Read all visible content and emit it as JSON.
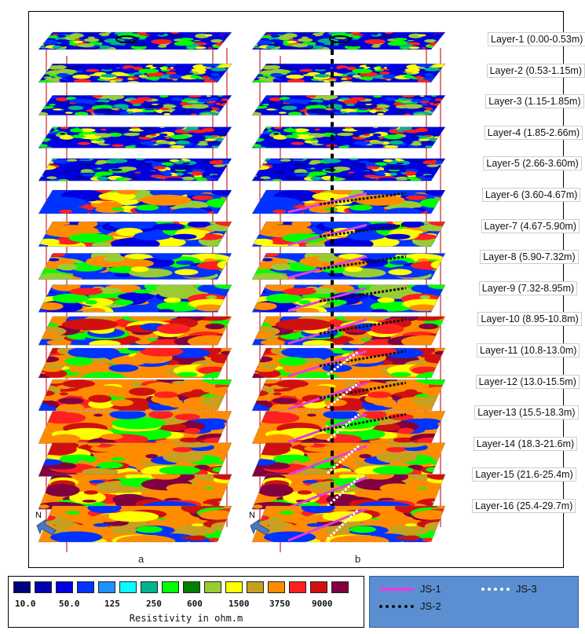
{
  "panels": [
    {
      "id": "a",
      "label": "a"
    },
    {
      "id": "b",
      "label": "b"
    }
  ],
  "north_label": "N",
  "layers": [
    "Layer-1 (0.00-0.53m)",
    "Layer-2 (0.53-1.15m)",
    "Layer-3 (1.15-1.85m)",
    "Layer-4 (1.85-2.66m)",
    "Layer-5 (2.66-3.60m)",
    "Layer-6 (3.60-4.67m)",
    "Layer-7 (4.67-5.90m)",
    "Layer-8 (5.90-7.32m)",
    "Layer-9 (7.32-8.95m)",
    "Layer-10 (8.95-10.8m)",
    "Layer-11 (10.8-13.0m)",
    "Layer-12 (13.0-15.5m)",
    "Layer-13 (15.5-18.3m)",
    "Layer-14 (18.3-21.6m)",
    "Layer-15 (21.6-25.4m)",
    "Layer-16 (25.4-29.7m)"
  ],
  "colorscale": {
    "colors": [
      "#000080",
      "#0000b0",
      "#0000e0",
      "#0033ff",
      "#1e90ff",
      "#00ffff",
      "#00b38f",
      "#00ff00",
      "#008000",
      "#99cc33",
      "#ffff00",
      "#c8a020",
      "#ff8c00",
      "#ff2020",
      "#d01010",
      "#800040",
      "#6a0070"
    ],
    "ticks": [
      "10.0",
      "50.0",
      "125",
      "250",
      "600",
      "1500",
      "3750",
      "9000"
    ],
    "title": "Resistivity in ohm.m"
  },
  "legend": [
    {
      "label": "JS-1",
      "color": "#e040e0",
      "style": "solid"
    },
    {
      "label": "JS-3",
      "color": "#ffffff",
      "style": "dotted"
    },
    {
      "label": "JS-2",
      "color": "#111111",
      "style": "dotted"
    }
  ]
}
